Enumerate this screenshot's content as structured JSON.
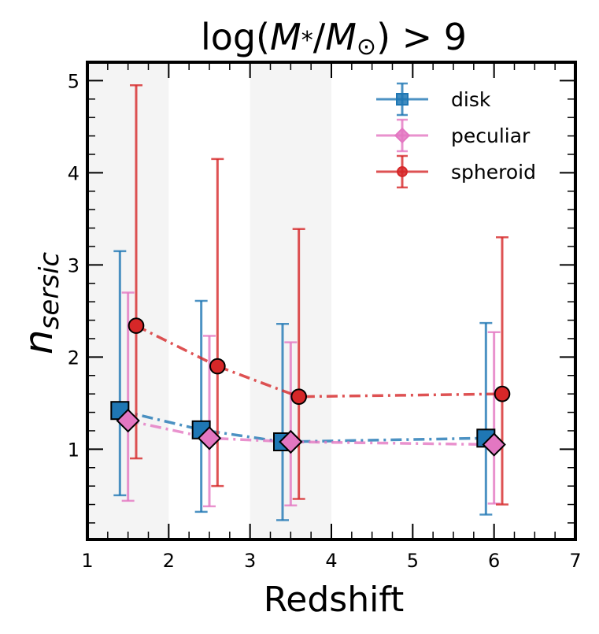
{
  "chart_data": {
    "type": "scatter",
    "title_parts": [
      "log(",
      "M",
      "*",
      "/",
      "M",
      "⊙",
      ") > 9"
    ],
    "xlabel": "Redshift",
    "ylabel_parts": [
      "n",
      "sersic"
    ],
    "xlim": [
      1,
      7
    ],
    "ylim": [
      0.02,
      5.2
    ],
    "xticks": [
      1,
      2,
      3,
      4,
      5,
      6,
      7
    ],
    "yticks": [
      1,
      2,
      3,
      4,
      5
    ],
    "xtick_labels": [
      "1",
      "2",
      "3",
      "4",
      "5",
      "6",
      "7"
    ],
    "ytick_labels": [
      "1",
      "2",
      "3",
      "4",
      "5"
    ],
    "shaded_bands": [
      [
        1,
        2
      ],
      [
        3,
        4
      ]
    ],
    "legend": {
      "position": "top-right"
    },
    "series": [
      {
        "name": "disk",
        "color": "#1f77b4",
        "marker": "square",
        "x": [
          1.4,
          2.4,
          3.4,
          5.9
        ],
        "y": [
          1.42,
          1.21,
          1.08,
          1.12
        ],
        "yerr_low": [
          0.5,
          0.32,
          0.23,
          0.29
        ],
        "yerr_high": [
          3.15,
          2.61,
          2.36,
          2.37
        ]
      },
      {
        "name": "peculiar",
        "color": "#e377c2",
        "marker": "diamond",
        "x": [
          1.5,
          2.5,
          3.5,
          6.0
        ],
        "y": [
          1.31,
          1.12,
          1.08,
          1.05
        ],
        "yerr_low": [
          0.44,
          0.38,
          0.39,
          0.41
        ],
        "yerr_high": [
          2.7,
          2.23,
          2.16,
          2.27
        ]
      },
      {
        "name": "spheroid",
        "color": "#d62728",
        "marker": "circle",
        "x": [
          1.6,
          2.6,
          3.6,
          6.1
        ],
        "y": [
          2.34,
          1.9,
          1.57,
          1.6
        ],
        "yerr_low": [
          0.9,
          0.6,
          0.46,
          0.4
        ],
        "yerr_high": [
          4.95,
          4.15,
          3.39,
          3.3
        ]
      }
    ]
  }
}
